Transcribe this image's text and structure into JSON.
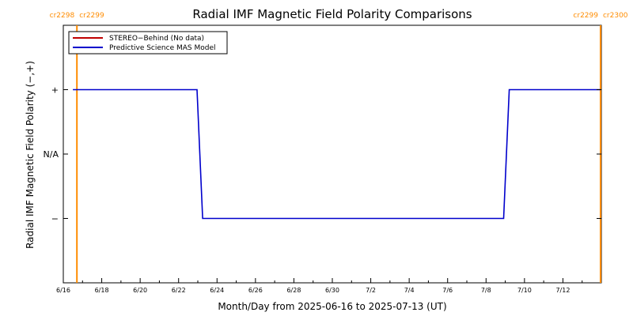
{
  "chart_data": {
    "type": "line",
    "title": "Radial IMF Magnetic Field Polarity Comparisons",
    "xlabel": "Month/Day from 2025-06-16 to 2025-07-13 (UT)",
    "ylabel": "Radial IMF Magnetic Field Polarity (−,+)",
    "x_range": [
      "2025-06-16",
      "2025-07-14"
    ],
    "y_range": [
      -2,
      2
    ],
    "x_ticks": [
      {
        "date": "2025-06-16",
        "label": "6/16"
      },
      {
        "date": "2025-06-18",
        "label": "6/18"
      },
      {
        "date": "2025-06-20",
        "label": "6/20"
      },
      {
        "date": "2025-06-22",
        "label": "6/22"
      },
      {
        "date": "2025-06-24",
        "label": "6/24"
      },
      {
        "date": "2025-06-26",
        "label": "6/26"
      },
      {
        "date": "2025-06-28",
        "label": "6/28"
      },
      {
        "date": "2025-06-30",
        "label": "6/30"
      },
      {
        "date": "2025-07-02",
        "label": "7/2"
      },
      {
        "date": "2025-07-04",
        "label": "7/4"
      },
      {
        "date": "2025-07-06",
        "label": "7/6"
      },
      {
        "date": "2025-07-08",
        "label": "7/8"
      },
      {
        "date": "2025-07-10",
        "label": "7/10"
      },
      {
        "date": "2025-07-12",
        "label": "7/12"
      }
    ],
    "y_ticks": [
      {
        "value": 1,
        "label": "+"
      },
      {
        "value": 0,
        "label": "N/A"
      },
      {
        "value": -1,
        "label": "−"
      }
    ],
    "series": [
      {
        "name": "STEREO−Behind (No data)",
        "color": "#c00000",
        "points": []
      },
      {
        "name": "Predictive Science MAS Model",
        "color": "#0000cc",
        "points": [
          {
            "x": "2025-06-16T12:00",
            "y": 1
          },
          {
            "x": "2025-06-22T23:00",
            "y": 1
          },
          {
            "x": "2025-06-23T06:00",
            "y": -1
          },
          {
            "x": "2025-07-08T22:00",
            "y": -1
          },
          {
            "x": "2025-07-09T05:00",
            "y": 1
          },
          {
            "x": "2025-07-13T23:00",
            "y": 1
          }
        ]
      }
    ],
    "carrington_markers": [
      {
        "date": "2025-06-16T17:00",
        "left_label": "cr2298",
        "right_label": "cr2299",
        "color": "#ff8c00"
      },
      {
        "date": "2025-07-13T23:00",
        "left_label": "cr2299",
        "right_label": "cr2300",
        "color": "#ff8c00"
      }
    ],
    "legend_position": "top-left",
    "grid": false
  }
}
